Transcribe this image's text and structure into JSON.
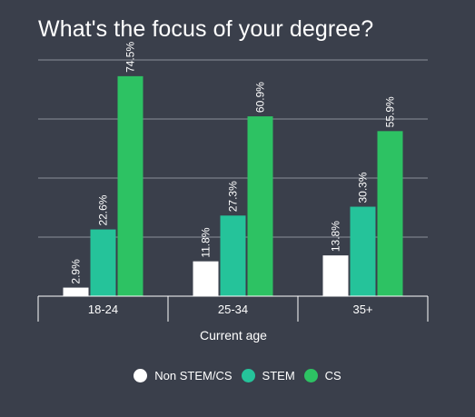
{
  "chart_data": {
    "type": "bar",
    "title": "What's the focus of your degree?",
    "xlabel": "Current age",
    "ylabel": "",
    "categories": [
      "18-24",
      "25-34",
      "35+"
    ],
    "series": [
      {
        "name": "Non STEM/CS",
        "color": "#ffffff",
        "values": [
          2.9,
          11.8,
          13.8
        ],
        "labels": [
          "2.9%",
          "11.8%",
          "13.8%"
        ]
      },
      {
        "name": "STEM",
        "color": "#25c39a",
        "values": [
          22.6,
          27.3,
          30.3
        ],
        "labels": [
          "22.6%",
          "27.3%",
          "30.3%"
        ]
      },
      {
        "name": "CS",
        "color": "#2dc263",
        "values": [
          74.5,
          60.9,
          55.9
        ],
        "labels": [
          "74.5%",
          "60.9%",
          "55.9%"
        ]
      }
    ],
    "ylim": [
      0,
      100
    ],
    "grid": true,
    "legend_position": "bottom-center"
  }
}
